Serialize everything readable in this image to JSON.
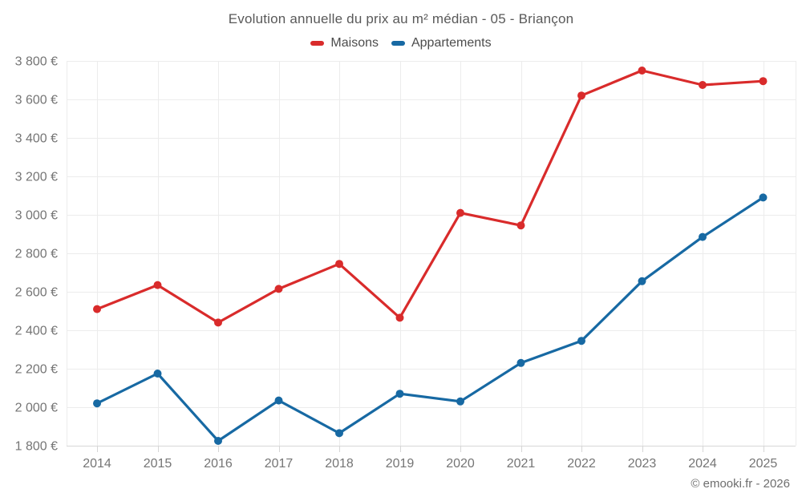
{
  "footer": {
    "copyright": "© emooki.fr - 2026"
  },
  "colors": {
    "background": "#ffffff",
    "grid": "#ececec",
    "axis": "#d6d6d6",
    "tick_label": "#757575",
    "title_text": "#595959",
    "legend_text": "#4c4c4c",
    "footer_text": "#6e6e6e",
    "maisons": "#d92b2b",
    "appartements": "#1769a3"
  },
  "chart_data": {
    "type": "line",
    "title": "Evolution annuelle du prix au m² médian - 05 - Briançon",
    "categories": [
      "2014",
      "2015",
      "2016",
      "2017",
      "2018",
      "2019",
      "2020",
      "2021",
      "2022",
      "2023",
      "2024",
      "2025"
    ],
    "series": [
      {
        "name": "Maisons",
        "color": "#d92b2b",
        "values": [
          2510,
          2635,
          2440,
          2615,
          2745,
          2465,
          3010,
          2945,
          3620,
          3750,
          3675,
          3695
        ]
      },
      {
        "name": "Appartements",
        "color": "#1769a3",
        "values": [
          2020,
          2175,
          1825,
          2035,
          1865,
          2070,
          2030,
          2230,
          2345,
          2655,
          2885,
          3090
        ]
      }
    ],
    "xlabel": "",
    "ylabel": "",
    "ylim": [
      1800,
      3800
    ],
    "y_ticks": [
      1800,
      2000,
      2200,
      2400,
      2600,
      2800,
      3000,
      3200,
      3400,
      3600,
      3800
    ],
    "y_tick_labels": [
      "1 800 €",
      "2 000 €",
      "2 200 €",
      "2 400 €",
      "2 600 €",
      "2 800 €",
      "3 000 €",
      "3 200 €",
      "3 400 €",
      "3 600 €",
      "3 800 €"
    ],
    "grid": true,
    "legend_position": "top",
    "currency": "€"
  }
}
